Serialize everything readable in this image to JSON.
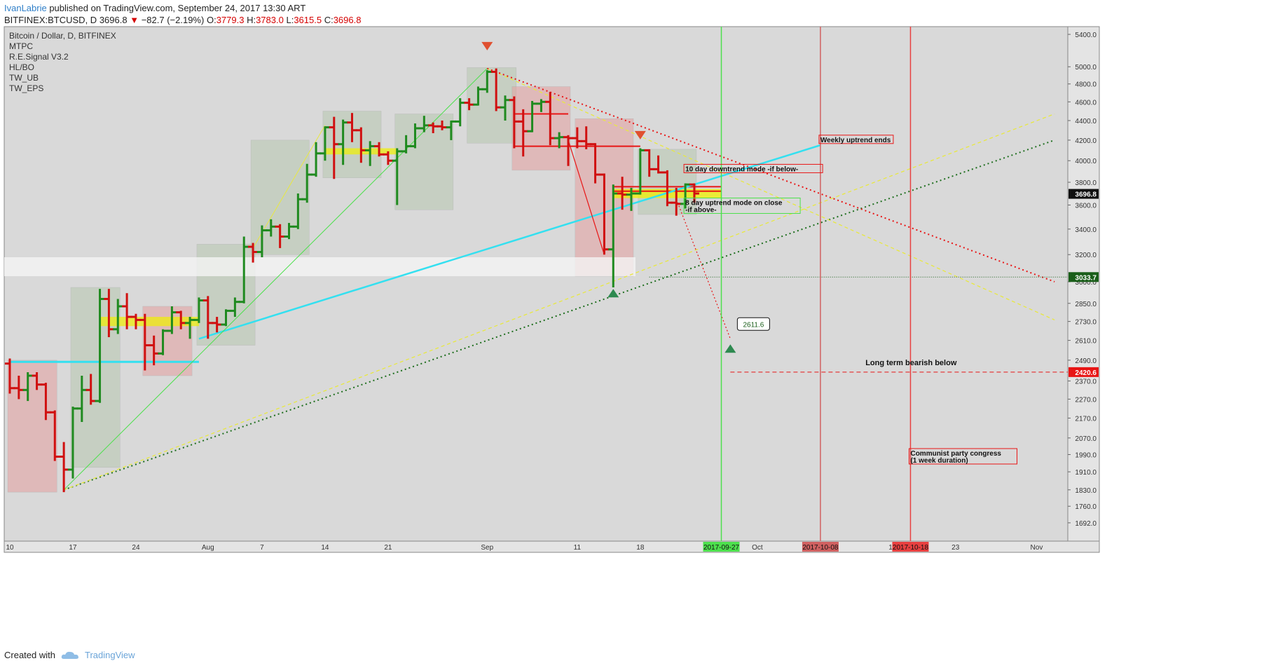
{
  "header": {
    "author": "IvanLabrie",
    "published": " published on TradingView.com, September 24, 2017 13:30 ART",
    "symbol": "BITFINEX:BTCUSD, D",
    "price": "3696.8",
    "change_arrow": "▼",
    "change": "−82.7 (−2.19%)",
    "o_label": "O:",
    "o": "3779.3",
    "h_label": "H:",
    "h": "3783.0",
    "l_label": "L:",
    "l": "3615.5",
    "c_label": "C:",
    "c": "3696.8"
  },
  "legend": [
    "Bitcoin / Dollar, D, BITFINEX",
    "MTPC",
    "R.E.Signal V3.2",
    "HL/BO",
    "TW_UB",
    "TW_EPS"
  ],
  "footer": {
    "created_with": "Created with",
    "brand": "TradingView"
  },
  "colors": {
    "up": "#1f8a1f",
    "down": "#d01010",
    "neutral": "#333333",
    "bg": "#d9d9d9",
    "cyan": "#33e0f0",
    "yellow": "#f0f000",
    "accent_red": "#e81515",
    "green_line": "#4de04d"
  },
  "chart_data": {
    "type": "ohlc",
    "title": "Bitcoin / Dollar, D, BITFINEX",
    "scale": "log",
    "ylim": [
      1620,
      5500
    ],
    "xlim": [
      "2017-07-10",
      "2017-11-04"
    ],
    "y_ticks": [
      "5400.0",
      "5000.0",
      "4800.0",
      "4600.0",
      "4400.0",
      "4200.0",
      "4000.0",
      "3800.0",
      "3600.0",
      "3400.0",
      "3200.0",
      "3000.0",
      "2850.0",
      "2730.0",
      "2610.0",
      "2490.0",
      "2370.0",
      "2270.0",
      "2170.0",
      "2070.0",
      "1990.0",
      "1910.0",
      "1830.0",
      "1760.0",
      "1692.0"
    ],
    "x_ticks": [
      {
        "date": "2017-07-10",
        "label": "10"
      },
      {
        "date": "2017-07-17",
        "label": "17"
      },
      {
        "date": "2017-07-24",
        "label": "24"
      },
      {
        "date": "2017-08-01",
        "label": "Aug"
      },
      {
        "date": "2017-08-07",
        "label": "7"
      },
      {
        "date": "2017-08-14",
        "label": "14"
      },
      {
        "date": "2017-08-21",
        "label": "21"
      },
      {
        "date": "2017-09-01",
        "label": "Sep"
      },
      {
        "date": "2017-09-11",
        "label": "11"
      },
      {
        "date": "2017-09-18",
        "label": "18"
      },
      {
        "date": "2017-10-01",
        "label": "Oct"
      },
      {
        "date": "2017-10-16",
        "label": "16"
      },
      {
        "date": "2017-10-23",
        "label": "23"
      },
      {
        "date": "2017-11-01",
        "label": "Nov"
      }
    ],
    "date_marks": [
      {
        "date": "2017-09-27",
        "label": "2017-09-27",
        "color": "#4de04d"
      },
      {
        "date": "2017-10-08",
        "label": "2017-10-08",
        "color": "#d06060"
      },
      {
        "date": "2017-10-18",
        "label": "2017-10-18",
        "color": "#e84040"
      }
    ],
    "price_labels": [
      {
        "value": 3696.8,
        "label": "3696.8",
        "color": "#111111"
      },
      {
        "value": 3033.7,
        "label": "3033.7",
        "color": "#1a5e1a"
      },
      {
        "value": 2420.6,
        "label": "2420.6",
        "color": "#e81515"
      }
    ],
    "annotations": [
      {
        "text": "Weekly uptrend ends",
        "date": "2017-10-08",
        "price": 4180
      },
      {
        "text": "10 day downtrend mode -if below-",
        "date": "2017-09-23",
        "price": 3900
      },
      {
        "text": "8 day uptrend mode on close",
        "text2": "-if above-",
        "date": "2017-09-23",
        "price": 3600
      },
      {
        "text": "2611.6",
        "date": "2017-09-28",
        "price": 2700
      },
      {
        "text": "Long term bearish below",
        "date": "2017-10-13",
        "price": 2460
      },
      {
        "text": "Communist party congress",
        "text2": "(1 week duration)",
        "date": "2017-10-18",
        "price": 1985
      }
    ],
    "candles": [
      {
        "d": "2017-07-10",
        "o": 2470,
        "h": 2500,
        "l": 2300,
        "c": 2330
      },
      {
        "d": "2017-07-11",
        "o": 2330,
        "h": 2400,
        "l": 2270,
        "c": 2320
      },
      {
        "d": "2017-07-12",
        "o": 2320,
        "h": 2420,
        "l": 2260,
        "c": 2400
      },
      {
        "d": "2017-07-13",
        "o": 2400,
        "h": 2420,
        "l": 2320,
        "c": 2350
      },
      {
        "d": "2017-07-14",
        "o": 2350,
        "h": 2360,
        "l": 2160,
        "c": 2200
      },
      {
        "d": "2017-07-15",
        "o": 2200,
        "h": 2210,
        "l": 1960,
        "c": 1980
      },
      {
        "d": "2017-07-16",
        "o": 1980,
        "h": 2050,
        "l": 1820,
        "c": 1920
      },
      {
        "d": "2017-07-17",
        "o": 1920,
        "h": 2230,
        "l": 1880,
        "c": 2220
      },
      {
        "d": "2017-07-18",
        "o": 2220,
        "h": 2400,
        "l": 2150,
        "c": 2320
      },
      {
        "d": "2017-07-19",
        "o": 2320,
        "h": 2410,
        "l": 2240,
        "c": 2260
      },
      {
        "d": "2017-07-20",
        "o": 2260,
        "h": 2950,
        "l": 2250,
        "c": 2880
      },
      {
        "d": "2017-07-21",
        "o": 2880,
        "h": 2950,
        "l": 2630,
        "c": 2680
      },
      {
        "d": "2017-07-22",
        "o": 2680,
        "h": 2880,
        "l": 2650,
        "c": 2830
      },
      {
        "d": "2017-07-23",
        "o": 2830,
        "h": 2920,
        "l": 2680,
        "c": 2760
      },
      {
        "d": "2017-07-24",
        "o": 2760,
        "h": 2780,
        "l": 2680,
        "c": 2740
      },
      {
        "d": "2017-07-25",
        "o": 2740,
        "h": 2780,
        "l": 2430,
        "c": 2580
      },
      {
        "d": "2017-07-26",
        "o": 2580,
        "h": 2640,
        "l": 2460,
        "c": 2530
      },
      {
        "d": "2017-07-27",
        "o": 2530,
        "h": 2680,
        "l": 2520,
        "c": 2670
      },
      {
        "d": "2017-07-28",
        "o": 2670,
        "h": 2830,
        "l": 2650,
        "c": 2790
      },
      {
        "d": "2017-07-29",
        "o": 2790,
        "h": 2800,
        "l": 2680,
        "c": 2720
      },
      {
        "d": "2017-07-30",
        "o": 2720,
        "h": 2760,
        "l": 2620,
        "c": 2740
      },
      {
        "d": "2017-07-31",
        "o": 2740,
        "h": 2890,
        "l": 2720,
        "c": 2870
      },
      {
        "d": "2017-08-01",
        "o": 2870,
        "h": 2900,
        "l": 2620,
        "c": 2720
      },
      {
        "d": "2017-08-02",
        "o": 2720,
        "h": 2760,
        "l": 2660,
        "c": 2710
      },
      {
        "d": "2017-08-03",
        "o": 2710,
        "h": 2810,
        "l": 2700,
        "c": 2800
      },
      {
        "d": "2017-08-04",
        "o": 2800,
        "h": 2890,
        "l": 2760,
        "c": 2860
      },
      {
        "d": "2017-08-05",
        "o": 2860,
        "h": 3340,
        "l": 2850,
        "c": 3260
      },
      {
        "d": "2017-08-06",
        "o": 3260,
        "h": 3290,
        "l": 3140,
        "c": 3220
      },
      {
        "d": "2017-08-07",
        "o": 3220,
        "h": 3430,
        "l": 3180,
        "c": 3390
      },
      {
        "d": "2017-08-08",
        "o": 3390,
        "h": 3480,
        "l": 3340,
        "c": 3420
      },
      {
        "d": "2017-08-09",
        "o": 3420,
        "h": 3440,
        "l": 3250,
        "c": 3340
      },
      {
        "d": "2017-08-10",
        "o": 3340,
        "h": 3450,
        "l": 3320,
        "c": 3420
      },
      {
        "d": "2017-08-11",
        "o": 3420,
        "h": 3700,
        "l": 3400,
        "c": 3650
      },
      {
        "d": "2017-08-12",
        "o": 3650,
        "h": 3970,
        "l": 3620,
        "c": 3870
      },
      {
        "d": "2017-08-13",
        "o": 3870,
        "h": 4180,
        "l": 3850,
        "c": 4070
      },
      {
        "d": "2017-08-14",
        "o": 4070,
        "h": 4340,
        "l": 4000,
        "c": 4330
      },
      {
        "d": "2017-08-15",
        "o": 4330,
        "h": 4440,
        "l": 3830,
        "c": 4160
      },
      {
        "d": "2017-08-16",
        "o": 4160,
        "h": 4410,
        "l": 3960,
        "c": 4380
      },
      {
        "d": "2017-08-17",
        "o": 4380,
        "h": 4480,
        "l": 4180,
        "c": 4300
      },
      {
        "d": "2017-08-18",
        "o": 4300,
        "h": 4330,
        "l": 3980,
        "c": 4100
      },
      {
        "d": "2017-08-19",
        "o": 4100,
        "h": 4190,
        "l": 3950,
        "c": 4140
      },
      {
        "d": "2017-08-20",
        "o": 4140,
        "h": 4180,
        "l": 4040,
        "c": 4060
      },
      {
        "d": "2017-08-21",
        "o": 4060,
        "h": 4090,
        "l": 3960,
        "c": 4000
      },
      {
        "d": "2017-08-22",
        "o": 4000,
        "h": 4120,
        "l": 3600,
        "c": 4090
      },
      {
        "d": "2017-08-23",
        "o": 4090,
        "h": 4250,
        "l": 4070,
        "c": 4140
      },
      {
        "d": "2017-08-24",
        "o": 4140,
        "h": 4370,
        "l": 4120,
        "c": 4320
      },
      {
        "d": "2017-08-25",
        "o": 4320,
        "h": 4450,
        "l": 4280,
        "c": 4350
      },
      {
        "d": "2017-08-26",
        "o": 4350,
        "h": 4380,
        "l": 4270,
        "c": 4340
      },
      {
        "d": "2017-08-27",
        "o": 4340,
        "h": 4400,
        "l": 4300,
        "c": 4330
      },
      {
        "d": "2017-08-28",
        "o": 4330,
        "h": 4400,
        "l": 4200,
        "c": 4390
      },
      {
        "d": "2017-08-29",
        "o": 4390,
        "h": 4640,
        "l": 4340,
        "c": 4590
      },
      {
        "d": "2017-08-30",
        "o": 4590,
        "h": 4640,
        "l": 4510,
        "c": 4570
      },
      {
        "d": "2017-08-31",
        "o": 4570,
        "h": 4770,
        "l": 4560,
        "c": 4740
      },
      {
        "d": "2017-09-01",
        "o": 4740,
        "h": 4960,
        "l": 4700,
        "c": 4940
      },
      {
        "d": "2017-09-02",
        "o": 4940,
        "h": 4980,
        "l": 4500,
        "c": 4540
      },
      {
        "d": "2017-09-03",
        "o": 4540,
        "h": 4670,
        "l": 4400,
        "c": 4620
      },
      {
        "d": "2017-09-04",
        "o": 4620,
        "h": 4660,
        "l": 4120,
        "c": 4390
      },
      {
        "d": "2017-09-05",
        "o": 4390,
        "h": 4520,
        "l": 4040,
        "c": 4290
      },
      {
        "d": "2017-09-06",
        "o": 4290,
        "h": 4610,
        "l": 4280,
        "c": 4580
      },
      {
        "d": "2017-09-07",
        "o": 4580,
        "h": 4630,
        "l": 4490,
        "c": 4600
      },
      {
        "d": "2017-09-08",
        "o": 4600,
        "h": 4710,
        "l": 4150,
        "c": 4220
      },
      {
        "d": "2017-09-09",
        "o": 4220,
        "h": 4280,
        "l": 4120,
        "c": 4230
      },
      {
        "d": "2017-09-10",
        "o": 4230,
        "h": 4250,
        "l": 3950,
        "c": 4220
      },
      {
        "d": "2017-09-11",
        "o": 4220,
        "h": 4330,
        "l": 4120,
        "c": 4190
      },
      {
        "d": "2017-09-12",
        "o": 4190,
        "h": 4340,
        "l": 4110,
        "c": 4160
      },
      {
        "d": "2017-09-13",
        "o": 4160,
        "h": 4170,
        "l": 3790,
        "c": 3870
      },
      {
        "d": "2017-09-14",
        "o": 3870,
        "h": 3880,
        "l": 3200,
        "c": 3240
      },
      {
        "d": "2017-09-15",
        "o": 3240,
        "h": 3780,
        "l": 2960,
        "c": 3700
      },
      {
        "d": "2017-09-16",
        "o": 3700,
        "h": 3850,
        "l": 3560,
        "c": 3690
      },
      {
        "d": "2017-09-17",
        "o": 3690,
        "h": 3750,
        "l": 3550,
        "c": 3700
      },
      {
        "d": "2017-09-18",
        "o": 3700,
        "h": 4120,
        "l": 3690,
        "c": 4100
      },
      {
        "d": "2017-09-19",
        "o": 4100,
        "h": 4110,
        "l": 3850,
        "c": 3920
      },
      {
        "d": "2017-09-20",
        "o": 3920,
        "h": 4050,
        "l": 3880,
        "c": 3890
      },
      {
        "d": "2017-09-21",
        "o": 3890,
        "h": 3910,
        "l": 3590,
        "c": 3620
      },
      {
        "d": "2017-09-22",
        "o": 3620,
        "h": 3750,
        "l": 3510,
        "c": 3610
      },
      {
        "d": "2017-09-23",
        "o": 3610,
        "h": 3790,
        "l": 3570,
        "c": 3780
      },
      {
        "d": "2017-09-24",
        "o": 3780,
        "h": 3790,
        "l": 3620,
        "c": 3700
      }
    ]
  }
}
